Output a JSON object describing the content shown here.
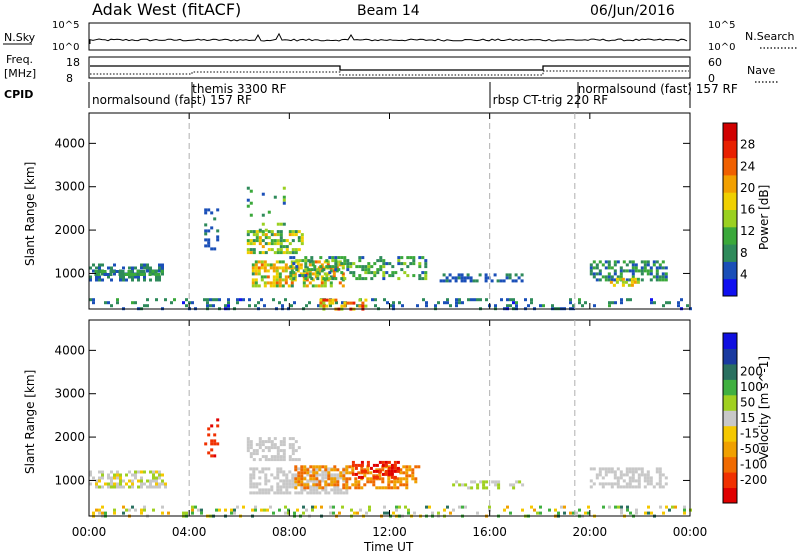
{
  "header": {
    "station": "Adak West (fitACF)",
    "beam": "Beam 14",
    "date": "06/Jun/2016"
  },
  "panels": {
    "nsky": {
      "label": "N.Sky",
      "right_label": "N.Search",
      "ticks_left": [
        "10^5",
        "10^0"
      ],
      "ticks_right": [
        "10^5",
        "10^0"
      ]
    },
    "freq": {
      "label_line1": "Freq.",
      "label_line2": "[MHz]",
      "right_label": "Nave",
      "ticks_left": [
        "18",
        "8"
      ],
      "ticks_right": [
        "60",
        "0"
      ]
    },
    "cpid": {
      "label": "CPID",
      "segments": [
        {
          "start_h": 0.0,
          "text": "normalsound (fast) 157 RF",
          "row": 1
        },
        {
          "start_h": 4.0,
          "text": "themis 3300 RF",
          "row": 0
        },
        {
          "start_h": 16.0,
          "text": "rbsp CT-trig 220 RF",
          "row": 1
        },
        {
          "start_h": 19.4,
          "text": "normalsound (fast) 157 RF",
          "row": 0
        }
      ]
    }
  },
  "chart_data": [
    {
      "type": "heatmap",
      "name": "power",
      "ylabel": "Slant Range [km]",
      "xlim_hours": [
        0,
        24
      ],
      "ylim_km": [
        180,
        4700
      ],
      "yticks": [
        1000,
        2000,
        3000,
        4000
      ],
      "colorbar": {
        "label": "Power [dB]",
        "range": [
          0,
          32
        ],
        "ticks": [
          4,
          8,
          12,
          16,
          20,
          24,
          28
        ],
        "colors": [
          "#1010f0",
          "#1a4fb8",
          "#2e8a5a",
          "#3aa83a",
          "#9ad020",
          "#f0d000",
          "#f2a000",
          "#f06000",
          "#e82000",
          "#d00000"
        ]
      },
      "scatter_regions": [
        {
          "t": [
            0.0,
            2.9
          ],
          "r": [
            820,
            1230
          ],
          "density": 0.55,
          "level": [
            5,
            9
          ]
        },
        {
          "t": [
            0.1,
            3.0
          ],
          "r": [
            960,
            1080
          ],
          "density": 0.6,
          "level": [
            6,
            12
          ]
        },
        {
          "t": [
            0.0,
            24.0
          ],
          "r": [
            180,
            430
          ],
          "density": 0.22,
          "level": [
            3,
            10
          ]
        },
        {
          "t": [
            4.6,
            5.1
          ],
          "r": [
            1550,
            2500
          ],
          "density": 0.25,
          "level": [
            3,
            7
          ]
        },
        {
          "t": [
            6.3,
            8.5
          ],
          "r": [
            1500,
            2000
          ],
          "density": 0.6,
          "level": [
            7,
            20
          ]
        },
        {
          "t": [
            6.5,
            10.2
          ],
          "r": [
            700,
            1300
          ],
          "density": 0.6,
          "level": [
            9,
            24
          ]
        },
        {
          "t": [
            8.0,
            13.4
          ],
          "r": [
            900,
            1400
          ],
          "density": 0.45,
          "level": [
            5,
            14
          ]
        },
        {
          "t": [
            6.3,
            7.8
          ],
          "r": [
            2000,
            3000
          ],
          "density": 0.08,
          "level": [
            4,
            16
          ]
        },
        {
          "t": [
            9.2,
            11.0
          ],
          "r": [
            200,
            420
          ],
          "density": 0.5,
          "level": [
            14,
            28
          ]
        },
        {
          "t": [
            14.0,
            17.3
          ],
          "r": [
            850,
            1000
          ],
          "density": 0.5,
          "level": [
            4,
            8
          ]
        },
        {
          "t": [
            20.0,
            23.0
          ],
          "r": [
            820,
            1300
          ],
          "density": 0.55,
          "level": [
            4,
            12
          ]
        },
        {
          "t": [
            20.8,
            21.9
          ],
          "r": [
            750,
            900
          ],
          "density": 0.6,
          "level": [
            12,
            22
          ]
        }
      ]
    },
    {
      "type": "heatmap",
      "name": "velocity",
      "ylabel": "Slant Range [km]",
      "xlabel": "Time UT",
      "xticks": [
        "00:00",
        "04:00",
        "08:00",
        "12:00",
        "16:00",
        "20:00",
        "00:00"
      ],
      "xlim_hours": [
        0,
        24
      ],
      "ylim_km": [
        180,
        4700
      ],
      "yticks": [
        1000,
        2000,
        3000,
        4000
      ],
      "colorbar": {
        "label": "Velocity [m s^-1]",
        "tick_labels": [
          "-200",
          "-100",
          "-50",
          "-15",
          "15",
          "50",
          "100",
          "200"
        ],
        "colors": [
          "#e00000",
          "#f03000",
          "#f06a00",
          "#f0a000",
          "#f5c800",
          "#c8c8c8",
          "#a0d020",
          "#40b040",
          "#2a7060",
          "#1a3aa0",
          "#1010e0"
        ]
      },
      "scatter_regions": [
        {
          "t": [
            0.0,
            3.0
          ],
          "r": [
            820,
            1230
          ],
          "density": 0.5,
          "level": [
            4,
            6
          ]
        },
        {
          "t": [
            0.0,
            24.0
          ],
          "r": [
            180,
            420
          ],
          "density": 0.22,
          "level": [
            3,
            8
          ]
        },
        {
          "t": [
            4.6,
            5.1
          ],
          "r": [
            1600,
            2500
          ],
          "density": 0.3,
          "level": [
            0,
            1
          ]
        },
        {
          "t": [
            6.3,
            8.4
          ],
          "r": [
            1500,
            2000
          ],
          "density": 0.55,
          "level": [
            5,
            5
          ]
        },
        {
          "t": [
            6.4,
            10.3
          ],
          "r": [
            700,
            1300
          ],
          "density": 0.6,
          "level": [
            5,
            5
          ]
        },
        {
          "t": [
            8.2,
            13.2
          ],
          "r": [
            850,
            1350
          ],
          "density": 0.55,
          "level": [
            2,
            3
          ]
        },
        {
          "t": [
            10.5,
            12.3
          ],
          "r": [
            1050,
            1450
          ],
          "density": 0.4,
          "level": [
            0,
            1
          ]
        },
        {
          "t": [
            14.5,
            17.3
          ],
          "r": [
            850,
            1000
          ],
          "density": 0.45,
          "level": [
            5,
            6
          ]
        },
        {
          "t": [
            20.0,
            23.0
          ],
          "r": [
            820,
            1300
          ],
          "density": 0.5,
          "level": [
            5,
            5
          ]
        }
      ]
    }
  ]
}
